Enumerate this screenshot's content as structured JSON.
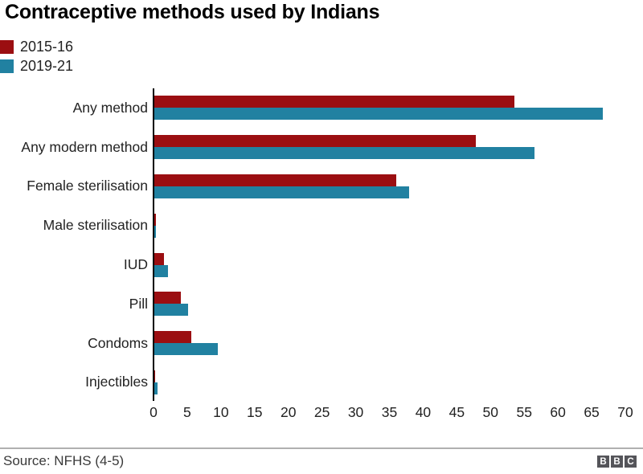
{
  "header": {
    "title": "Contraceptive methods used by Indians"
  },
  "legend": [
    {
      "label": "2015-16",
      "color": "#9b0e11"
    },
    {
      "label": "2019-21",
      "color": "#2181a1"
    }
  ],
  "chart_data": {
    "type": "bar",
    "orientation": "horizontal",
    "title": "Contraceptive methods used by Indians",
    "categories": [
      "Any method",
      "Any modern method",
      "Female sterilisation",
      "Male sterilisation",
      "IUD",
      "Pill",
      "Condoms",
      "Injectibles"
    ],
    "series": [
      {
        "name": "2015-16",
        "color": "#9b0e11",
        "values": [
          53.5,
          47.8,
          36.0,
          0.3,
          1.5,
          4.1,
          5.6,
          0.2
        ]
      },
      {
        "name": "2019-21",
        "color": "#2181a1",
        "values": [
          66.7,
          56.5,
          37.9,
          0.3,
          2.1,
          5.1,
          9.5,
          0.6
        ]
      }
    ],
    "xlabel": "",
    "ylabel": "",
    "xlim": [
      0,
      70
    ],
    "x_ticks": [
      0,
      5,
      10,
      15,
      20,
      25,
      30,
      35,
      40,
      45,
      50,
      55,
      60,
      65,
      70
    ],
    "grid": false,
    "legend_position": "top-left"
  },
  "footer": {
    "source": "Source: NFHS (4-5)",
    "logo_letters": [
      "B",
      "B",
      "C"
    ]
  }
}
